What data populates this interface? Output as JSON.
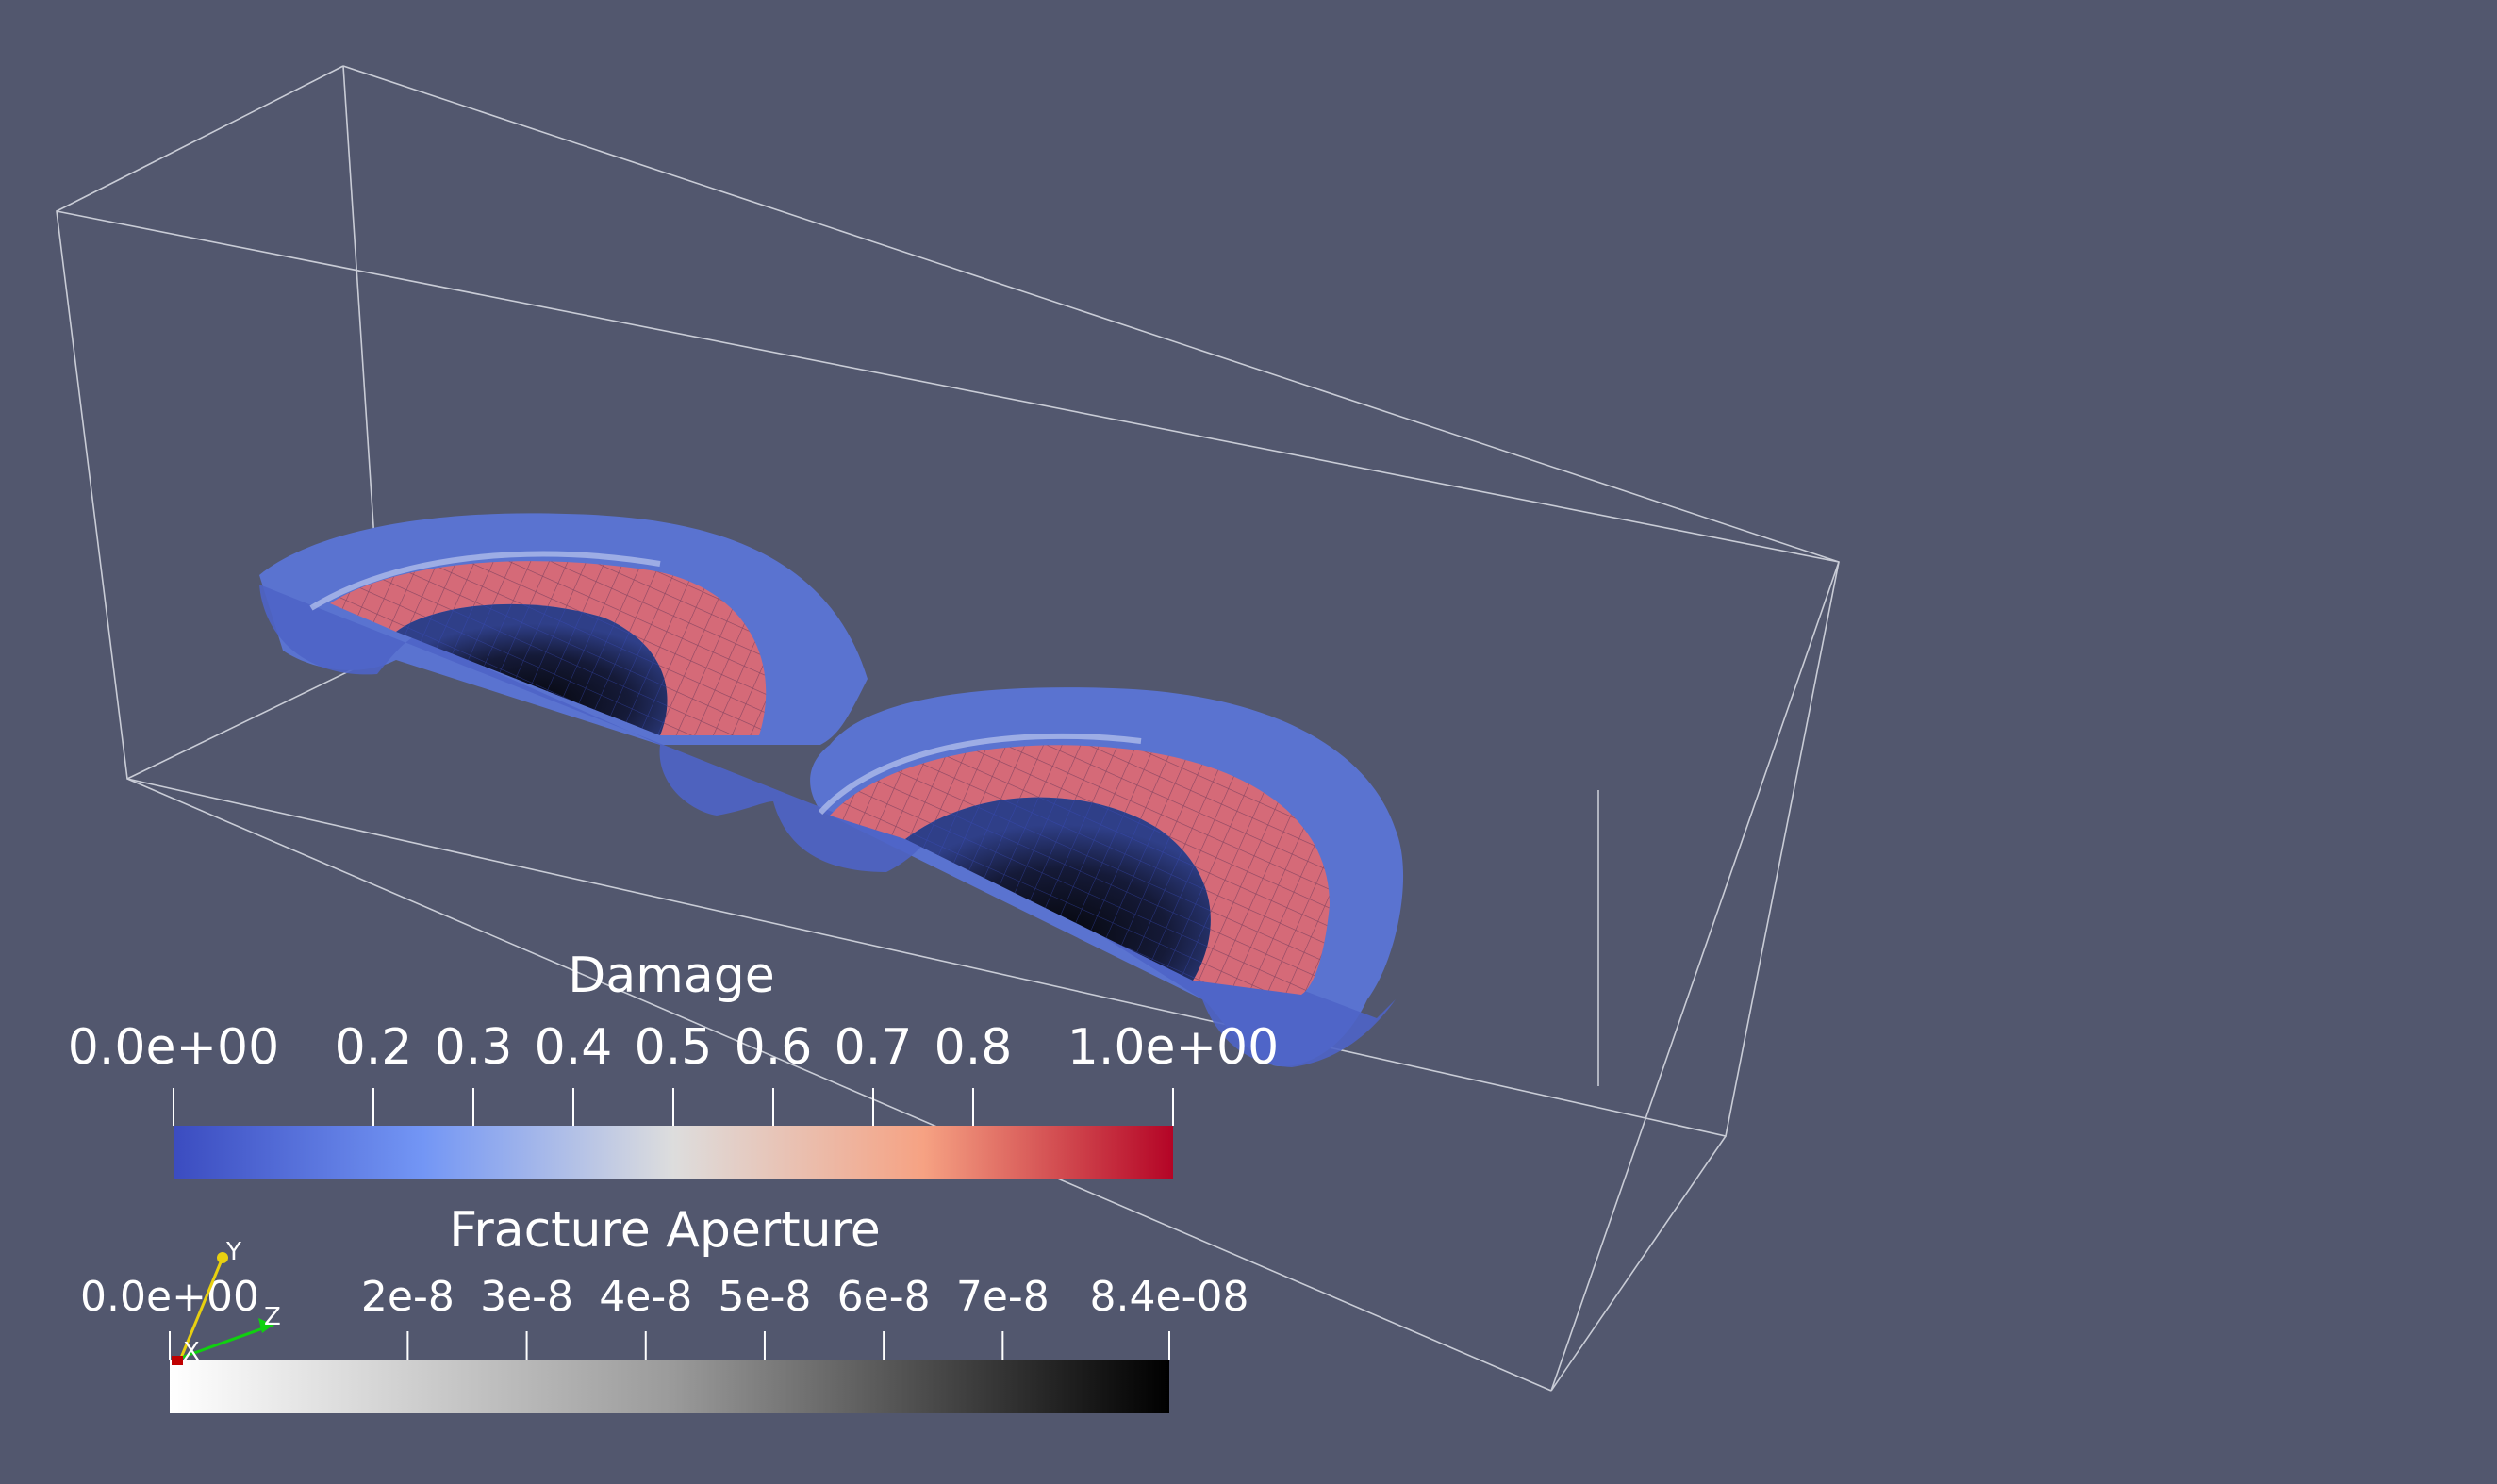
{
  "colors": {
    "background": "#52576e",
    "outline": "#c9ccd6",
    "damage_low": "#3b4cc0",
    "damage_mid": "#dddddd",
    "damage_high": "#b40426",
    "aperture_low": "#ffffff",
    "aperture_high": "#000000",
    "axis_x": "#c00000",
    "axis_y": "#e8d010",
    "axis_z": "#10d010"
  },
  "damage_legend": {
    "title": "Damage",
    "range": [
      0,
      1
    ],
    "tick_labels": [
      "0.0e+00",
      "0.2",
      "0.3",
      "0.4",
      "0.5",
      "0.6",
      "0.7",
      "0.8",
      "1.0e+00"
    ],
    "tick_values": [
      0,
      0.2,
      0.3,
      0.4,
      0.5,
      0.6,
      0.7,
      0.8,
      1.0
    ]
  },
  "aperture_legend": {
    "title": "Fracture Aperture",
    "range": [
      0,
      8.4e-08
    ],
    "tick_labels": [
      "0.0e+00",
      "2e-8",
      "3e-8",
      "4e-8",
      "5e-8",
      "6e-8",
      "7e-8",
      "8.4e-08"
    ],
    "tick_values": [
      0,
      2e-08,
      3e-08,
      4e-08,
      5e-08,
      6e-08,
      7e-08,
      8.4e-08
    ]
  },
  "axes_triad": {
    "x_label": "X",
    "y_label": "Y",
    "z_label": "Z"
  }
}
